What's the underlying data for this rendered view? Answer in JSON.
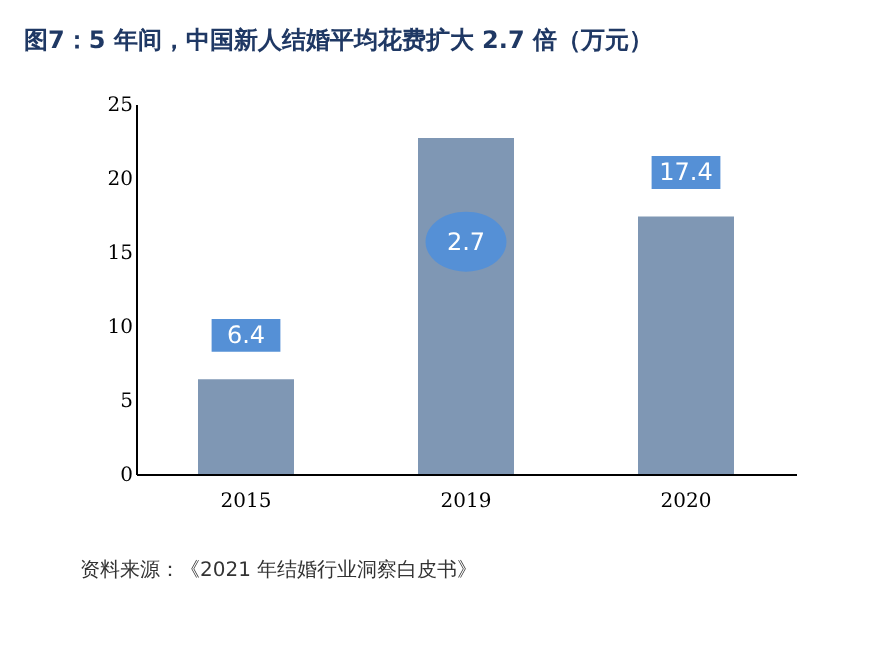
{
  "chart_data": {
    "type": "bar",
    "title": "图7：5 年间，中国新人结婚平均花费扩大 2.7 倍（万元）",
    "categories": [
      "2015",
      "2019",
      "2020"
    ],
    "series": [
      {
        "color": "#7f97b4",
        "values": [
          6.4,
          22.7,
          17.4
        ]
      }
    ],
    "value_labels": [
      "6.4",
      null,
      "17.4"
    ],
    "annotations": [
      {
        "text": "2.7",
        "x": "2019",
        "y": 15.7
      },
      "资料来源：《2021 年结婚行业洞察白皮书》"
    ],
    "ylim": [
      0,
      25
    ],
    "yticks": [
      0,
      5,
      10,
      15,
      20,
      25
    ],
    "grid": false
  }
}
